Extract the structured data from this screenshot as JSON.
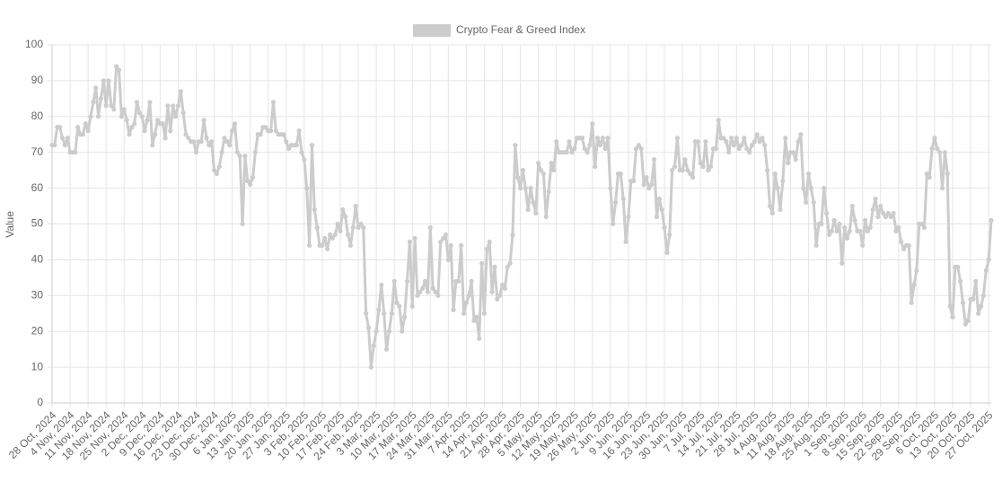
{
  "chart_data": {
    "type": "line",
    "y_label": "Value",
    "categories": [
      "28 Oct, 2024",
      null,
      null,
      null,
      null,
      null,
      null,
      "4 Nov, 2024",
      null,
      null,
      null,
      null,
      null,
      null,
      "11 Nov, 2024",
      null,
      null,
      null,
      null,
      null,
      null,
      "18 Nov, 2024",
      null,
      null,
      null,
      null,
      null,
      null,
      "25 Nov, 2024",
      null,
      null,
      null,
      null,
      null,
      null,
      "2 Dec, 2024",
      null,
      null,
      null,
      null,
      null,
      null,
      "9 Dec, 2024",
      null,
      null,
      null,
      null,
      null,
      null,
      "16 Dec, 2024",
      null,
      null,
      null,
      null,
      null,
      null,
      "23 Dec, 2024",
      null,
      null,
      null,
      null,
      null,
      null,
      "30 Dec, 2024",
      null,
      null,
      null,
      null,
      null,
      null,
      "6 Jan, 2025",
      null,
      null,
      null,
      null,
      null,
      null,
      "13 Jan, 2025",
      null,
      null,
      null,
      null,
      null,
      null,
      "20 Jan, 2025",
      null,
      null,
      null,
      null,
      null,
      null,
      "27 Jan, 2025",
      null,
      null,
      null,
      null,
      null,
      null,
      "3 Feb, 2025",
      null,
      null,
      null,
      null,
      null,
      null,
      "10 Feb, 2025",
      null,
      null,
      null,
      null,
      null,
      null,
      "17 Feb, 2025",
      null,
      null,
      null,
      null,
      null,
      null,
      "24 Feb, 2025",
      null,
      null,
      null,
      null,
      null,
      null,
      "3 Mar, 2025",
      null,
      null,
      null,
      null,
      null,
      null,
      "10 Mar, 2025",
      null,
      null,
      null,
      null,
      null,
      null,
      "17 Mar, 2025",
      null,
      null,
      null,
      null,
      null,
      null,
      "24 Mar, 2025",
      null,
      null,
      null,
      null,
      null,
      null,
      "31 Mar, 2025",
      null,
      null,
      null,
      null,
      null,
      null,
      "7 Apr, 2025",
      null,
      null,
      null,
      null,
      null,
      null,
      "14 Apr, 2025",
      null,
      null,
      null,
      null,
      null,
      null,
      "21 Apr, 2025",
      null,
      null,
      null,
      null,
      null,
      null,
      "28 Apr, 2025",
      null,
      null,
      null,
      null,
      null,
      null,
      "5 May, 2025",
      null,
      null,
      null,
      null,
      null,
      null,
      "12 May, 2025",
      null,
      null,
      null,
      null,
      null,
      null,
      "19 May, 2025",
      null,
      null,
      null,
      null,
      null,
      null,
      "26 May, 2025",
      null,
      null,
      null,
      null,
      null,
      null,
      "2 Jun, 2025",
      null,
      null,
      null,
      null,
      null,
      null,
      "9 Jun, 2025",
      null,
      null,
      null,
      null,
      null,
      null,
      "16 Jun, 2025",
      null,
      null,
      null,
      null,
      null,
      null,
      "23 Jun, 2025",
      null,
      null,
      null,
      null,
      null,
      null,
      "30 Jun, 2025",
      null,
      null,
      null,
      null,
      null,
      null,
      "7 Jul, 2025",
      null,
      null,
      null,
      null,
      null,
      null,
      "14 Jul, 2025",
      null,
      null,
      null,
      null,
      null,
      null,
      "21 Jul, 2025",
      null,
      null,
      null,
      null,
      null,
      null,
      "28 Jul, 2025",
      null,
      null,
      null,
      null,
      null,
      null,
      "4 Aug, 2025",
      null,
      null,
      null,
      null,
      null,
      null,
      "11 Aug, 2025",
      null,
      null,
      null,
      null,
      null,
      null,
      "18 Aug, 2025",
      null,
      null,
      null,
      null,
      null,
      null,
      "25 Aug, 2025",
      null,
      null,
      null,
      null,
      null,
      null,
      "1 Sep, 2025",
      null,
      null,
      null,
      null,
      null,
      null,
      "8 Sep, 2025",
      null,
      null,
      null,
      null,
      null,
      null,
      "15 Sep, 2025",
      null,
      null,
      null,
      null,
      null,
      null,
      "22 Sep, 2025",
      null,
      null,
      null,
      null,
      null,
      null,
      "29 Sep, 2025",
      null,
      null,
      null,
      null,
      null,
      null,
      "6 Oct, 2025",
      null,
      null,
      null,
      null,
      null,
      null,
      "13 Oct, 2025",
      null,
      null,
      null,
      null,
      null,
      null,
      "20 Oct, 2025",
      null,
      null,
      null,
      null,
      null,
      null,
      "27 Oct, 2025",
      null
    ],
    "series": [
      {
        "name": "Crypto Fear & Greed Index",
        "color": "#cccccc",
        "values": [
          72,
          72,
          77,
          77,
          74,
          72,
          74,
          70,
          70,
          70,
          77,
          75,
          75,
          78,
          76,
          80,
          84,
          88,
          80,
          85,
          90,
          83,
          90,
          83,
          82,
          94,
          93,
          80,
          82,
          79,
          75,
          77,
          78,
          84,
          81,
          80,
          76,
          79,
          84,
          72,
          75,
          79,
          78,
          78,
          74,
          83,
          76,
          83,
          80,
          83,
          87,
          81,
          75,
          74,
          73,
          73,
          70,
          73,
          73,
          79,
          74,
          72,
          73,
          65,
          64,
          66,
          70,
          74,
          73,
          72,
          76,
          78,
          70,
          69,
          50,
          69,
          62,
          61,
          63,
          70,
          75,
          75,
          77,
          77,
          76,
          76,
          84,
          76,
          75,
          75,
          75,
          73,
          71,
          72,
          72,
          72,
          76,
          70,
          68,
          60,
          44,
          72,
          54,
          49,
          44,
          44,
          46,
          43,
          47,
          46,
          47,
          50,
          48,
          54,
          52,
          47,
          44,
          49,
          55,
          49,
          50,
          49,
          25,
          21,
          10,
          16,
          20,
          26,
          33,
          25,
          15,
          20,
          25,
          34,
          28,
          27,
          20,
          24,
          34,
          45,
          27,
          46,
          30,
          31,
          32,
          34,
          31,
          49,
          32,
          31,
          30,
          45,
          46,
          47,
          40,
          44,
          26,
          34,
          34,
          44,
          25,
          28,
          30,
          34,
          23,
          24,
          18,
          39,
          25,
          43,
          45,
          31,
          38,
          29,
          30,
          33,
          32,
          38,
          39,
          47,
          72,
          63,
          60,
          65,
          60,
          54,
          60,
          56,
          53,
          67,
          65,
          64,
          52,
          59,
          67,
          65,
          73,
          70,
          70,
          70,
          70,
          73,
          70,
          71,
          74,
          74,
          74,
          71,
          70,
          72,
          78,
          66,
          74,
          72,
          74,
          71,
          74,
          60,
          50,
          56,
          64,
          64,
          57,
          45,
          52,
          62,
          62,
          71,
          72,
          71,
          61,
          63,
          60,
          61,
          68,
          52,
          57,
          54,
          49,
          42,
          47,
          65,
          66,
          74,
          65,
          65,
          68,
          65,
          64,
          63,
          73,
          73,
          67,
          66,
          73,
          65,
          66,
          71,
          71,
          79,
          74,
          74,
          73,
          70,
          74,
          72,
          74,
          71,
          72,
          74,
          71,
          70,
          72,
          73,
          75,
          73,
          74,
          72,
          65,
          55,
          53,
          64,
          60,
          54,
          62,
          74,
          67,
          70,
          70,
          68,
          73,
          75,
          60,
          56,
          64,
          60,
          56,
          44,
          50,
          50,
          60,
          53,
          47,
          48,
          51,
          48,
          50,
          39,
          49,
          46,
          48,
          55,
          51,
          48,
          48,
          44,
          51,
          48,
          49,
          54,
          57,
          52,
          55,
          53,
          52,
          53,
          52,
          53,
          48,
          49,
          45,
          43,
          44,
          44,
          28,
          33,
          37,
          50,
          50,
          49,
          64,
          63,
          71,
          74,
          71,
          70,
          60,
          70,
          64,
          27,
          24,
          38,
          38,
          34,
          28,
          22,
          23,
          29,
          29,
          34,
          25,
          27,
          30,
          37,
          40,
          51
        ]
      }
    ],
    "ylim": [
      0,
      100
    ],
    "yticks": [
      0,
      10,
      20,
      30,
      40,
      50,
      60,
      70,
      80,
      90,
      100
    ],
    "grid": true
  }
}
